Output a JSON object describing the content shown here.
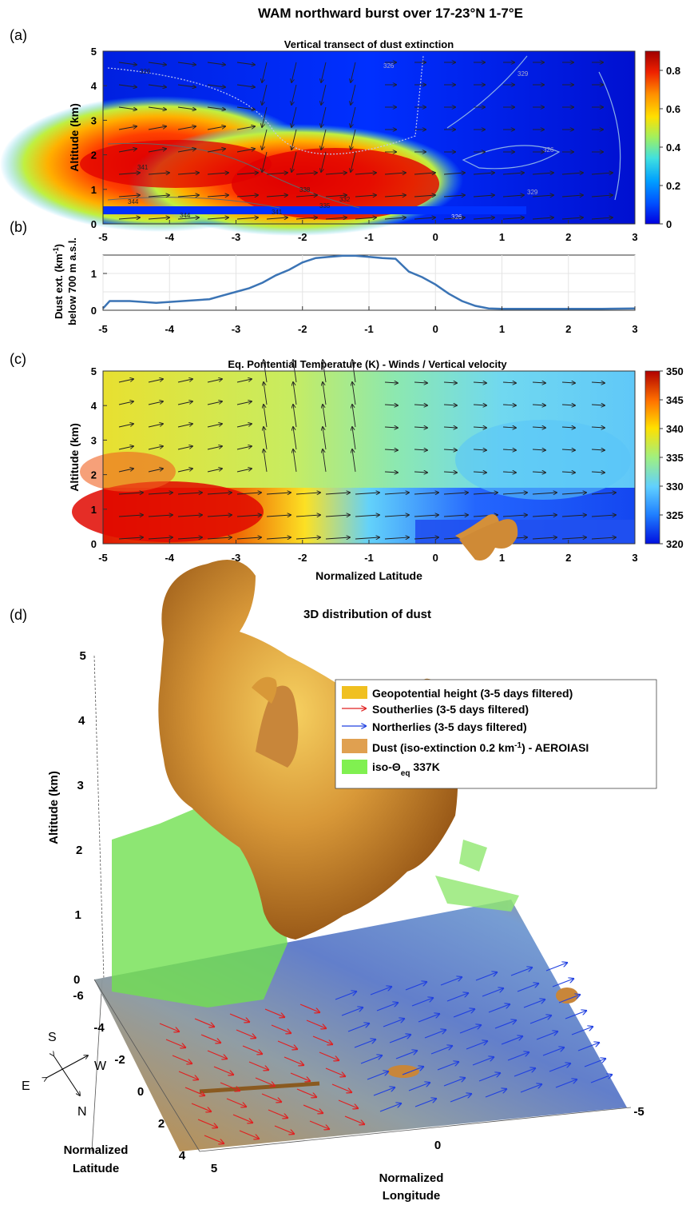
{
  "figure": {
    "title": "WAM northward burst over 17-23°N 1-7°E"
  },
  "chart_data": [
    {
      "panel": "a",
      "panel_label": "(a)",
      "type": "heatmap",
      "title": "Vertical transect of dust extinction",
      "xlabel": "",
      "ylabel": "Altitude (km)",
      "xlim": [
        -5,
        3
      ],
      "ylim": [
        0,
        5
      ],
      "xticks": [
        "-5",
        "-4",
        "-3",
        "-2",
        "-1",
        "0",
        "1",
        "2",
        "3"
      ],
      "yticks": [
        "0",
        "1",
        "2",
        "3",
        "4",
        "5"
      ],
      "colorbar": {
        "min": 0,
        "max": 0.9,
        "ticks": [
          "0",
          "0.2",
          "0.4",
          "0.6",
          "0.8"
        ]
      },
      "contour_labels": [
        "326",
        "326",
        "329",
        "341",
        "344",
        "344",
        "341",
        "338",
        "335",
        "332",
        "326",
        "326",
        "329"
      ],
      "colors": {
        "high": "#b30000",
        "mid": "#ffd000",
        "low": "#0000e0"
      }
    },
    {
      "panel": "b",
      "panel_label": "(b)",
      "type": "line",
      "title": "",
      "xlabel": "",
      "ylabel": "Dust ext. (km⁻¹) below 700 m a.s.l.",
      "ylabel_line1": "Dust ext. (km",
      "ylabel_sup": "-1",
      "ylabel_line1_end": ")",
      "ylabel_line2": "below 700 m a.s.l.",
      "xlim": [
        -5,
        3
      ],
      "ylim": [
        0,
        1.5
      ],
      "xticks": [
        "-5",
        "-4",
        "-3",
        "-2",
        "-1",
        "0",
        "1",
        "2",
        "3"
      ],
      "yticks": [
        "0",
        "1"
      ],
      "x": [
        -5,
        -4.9,
        -4.6,
        -4.2,
        -3.8,
        -3.4,
        -3.2,
        -3.0,
        -2.8,
        -2.6,
        -2.4,
        -2.2,
        -2.0,
        -1.8,
        -1.6,
        -1.4,
        -1.2,
        -1.0,
        -0.8,
        -0.6,
        -0.4,
        -0.2,
        0,
        0.2,
        0.4,
        0.6,
        0.8,
        1.0,
        1.5,
        2.0,
        2.5,
        3.0
      ],
      "y": [
        0.05,
        0.25,
        0.25,
        0.2,
        0.25,
        0.3,
        0.4,
        0.5,
        0.6,
        0.75,
        0.95,
        1.1,
        1.3,
        1.42,
        1.45,
        1.48,
        1.48,
        1.45,
        1.42,
        1.4,
        1.05,
        0.9,
        0.7,
        0.45,
        0.25,
        0.12,
        0.05,
        0.04,
        0.04,
        0.04,
        0.04,
        0.05
      ],
      "colors": {
        "line": "#3b74b5"
      }
    },
    {
      "panel": "c",
      "panel_label": "(c)",
      "type": "heatmap",
      "title": "Eq. Pontential Temperature (K) - Winds / Vertical velocity",
      "xlabel": "Normalized Latitude",
      "ylabel": "Altitude (km)",
      "xlim": [
        -5,
        3
      ],
      "ylim": [
        0,
        5
      ],
      "xticks": [
        "-5",
        "-4",
        "-3",
        "-2",
        "-1",
        "0",
        "1",
        "2",
        "3"
      ],
      "yticks": [
        "0",
        "1",
        "2",
        "3",
        "4",
        "5"
      ],
      "colorbar": {
        "min": 320,
        "max": 350,
        "ticks": [
          "320",
          "325",
          "330",
          "335",
          "340",
          "345",
          "350"
        ]
      }
    },
    {
      "panel": "d",
      "panel_label": "(d)",
      "type": "3d-surface",
      "title": "3D distribution of dust",
      "zlabel": "Altitude (km)",
      "zticks": [
        "0",
        "1",
        "2",
        "3",
        "4",
        "5"
      ],
      "lat_label_line1": "Normalized",
      "lat_label_line2": "Latitude",
      "lat_ticks": [
        "-6",
        "-4",
        "-2",
        "0",
        "2",
        "4"
      ],
      "lon_label_line1": "Normalized",
      "lon_label_line2": "Longitude",
      "lon_ticks": [
        "5",
        "0",
        "-5"
      ],
      "compass": {
        "s": "S",
        "e": "E",
        "w": "W",
        "n": "N"
      },
      "legend": [
        {
          "label": "Geopotential height (3-5 days filtered)",
          "color": "#f0c020",
          "kind": "patch"
        },
        {
          "label": "Southerlies (3-5 days filtered)",
          "color": "#e02020",
          "kind": "arrow"
        },
        {
          "label": "Northerlies (3-5 days filtered)",
          "color": "#2040e0",
          "kind": "arrow"
        },
        {
          "label": "Dust (iso-extinction 0.2 km",
          "label_sup": "-1",
          "label_end": ") - AEROIASI",
          "color": "#e0a050",
          "kind": "patch"
        },
        {
          "label": "iso-Θ",
          "label_sub": "eq",
          "label_end": " 337K",
          "color": "#80f050",
          "kind": "patch"
        }
      ]
    }
  ]
}
